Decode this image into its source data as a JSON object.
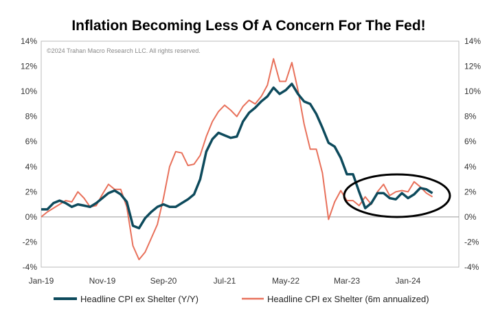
{
  "chart_data": {
    "type": "line",
    "title": "Inflation Becoming Less Of A Concern For The Fed!",
    "watermark": "©2024 Trahan Macro Research LLC. All rights reserved.",
    "start": "Jan-19",
    "frequency": "monthly",
    "x_tick_labels": [
      "Jan-19",
      "Nov-19",
      "Sep-20",
      "Jul-21",
      "May-22",
      "Mar-23",
      "Jan-24"
    ],
    "y_tick_labels": [
      "14%",
      "12%",
      "10%",
      "8%",
      "6%",
      "4%",
      "2%",
      "0%",
      "-2%",
      "-4%"
    ],
    "ylim": [
      -4,
      14
    ],
    "y_axes": "both-sides",
    "grid": false,
    "legend": "bottom",
    "annotation": "ellipse around Jun-23 to May-24",
    "series": [
      {
        "name": "Headline CPI ex Shelter (Y/Y)",
        "color": "#0d4a5c",
        "values": [
          0.6,
          0.6,
          1.1,
          1.3,
          1.1,
          0.8,
          1.0,
          0.9,
          0.8,
          1.1,
          1.5,
          1.9,
          2.1,
          1.8,
          1.2,
          -0.7,
          -0.9,
          -0.1,
          0.4,
          0.8,
          1.0,
          0.8,
          0.8,
          1.1,
          1.4,
          1.8,
          3.0,
          5.2,
          6.2,
          6.7,
          6.5,
          6.3,
          6.4,
          7.6,
          8.3,
          8.7,
          9.2,
          9.6,
          10.3,
          9.8,
          10.1,
          10.6,
          9.8,
          9.2,
          9.0,
          8.2,
          7.1,
          5.9,
          5.6,
          4.7,
          3.4,
          3.4,
          2.0,
          0.7,
          1.1,
          1.9,
          1.9,
          1.5,
          1.4,
          1.9,
          1.5,
          1.8,
          2.3,
          2.2,
          1.9
        ]
      },
      {
        "name": "Headline CPI ex Shelter (6m annualized)",
        "color": "#e8705a",
        "values": [
          0.0,
          0.4,
          0.7,
          1.0,
          1.3,
          1.2,
          2.0,
          1.5,
          0.8,
          0.9,
          1.8,
          2.6,
          2.2,
          2.2,
          0.8,
          -2.3,
          -3.4,
          -2.8,
          -1.7,
          -0.6,
          1.5,
          4.0,
          5.2,
          5.1,
          4.1,
          4.2,
          4.9,
          6.4,
          7.6,
          8.4,
          8.9,
          8.5,
          8.0,
          8.8,
          9.3,
          9.0,
          9.6,
          10.5,
          12.6,
          10.8,
          10.8,
          12.3,
          10.1,
          7.4,
          5.4,
          5.4,
          3.5,
          -0.2,
          1.2,
          2.1,
          1.3,
          1.3,
          0.9,
          1.6,
          1.0,
          2.0,
          2.6,
          1.7,
          2.0,
          2.1,
          2.0,
          2.8,
          2.4,
          1.9,
          1.6
        ]
      }
    ]
  }
}
